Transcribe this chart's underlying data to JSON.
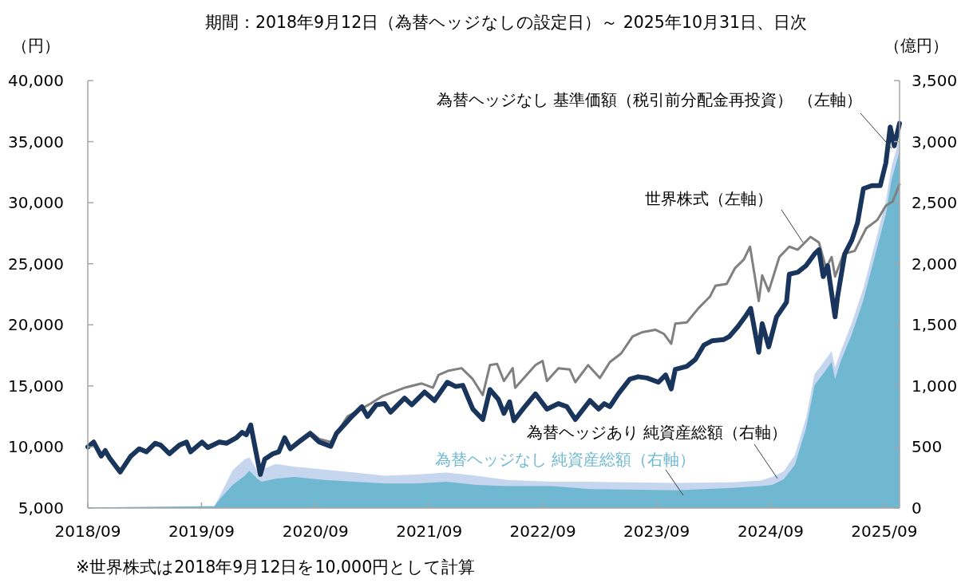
{
  "chart_data": {
    "type": "line",
    "title": "期間：2018年9月12日（為替ヘッジなしの設定日）～ 2025年10月31日、日次",
    "ylabel": "（円）",
    "y2label": "（億円）",
    "annotations": [
      "※世界株式は2018年9月12日を10,000円として計算"
    ],
    "xlim": [
      "2018-09-12",
      "2025-10-31"
    ],
    "xticks": [
      {
        "value": "2018-09-12",
        "label": "2018/09"
      },
      {
        "value": "2019-09-12",
        "label": "2019/09"
      },
      {
        "value": "2020-09-12",
        "label": "2020/09"
      },
      {
        "value": "2021-09-12",
        "label": "2021/09"
      },
      {
        "value": "2022-09-12",
        "label": "2022/09"
      },
      {
        "value": "2023-09-12",
        "label": "2023/09"
      },
      {
        "value": "2024-09-12",
        "label": "2024/09"
      },
      {
        "value": "2025-09-12",
        "label": "2025/09"
      }
    ],
    "ylim": [
      5000,
      40000
    ],
    "yticks": [
      {
        "value": 5000,
        "label": "5,000"
      },
      {
        "value": 10000,
        "label": "10,000"
      },
      {
        "value": 15000,
        "label": "15,000"
      },
      {
        "value": 20000,
        "label": "20,000"
      },
      {
        "value": 25000,
        "label": "25,000"
      },
      {
        "value": 30000,
        "label": "30,000"
      },
      {
        "value": 35000,
        "label": "35,000"
      },
      {
        "value": 40000,
        "label": "40,000"
      }
    ],
    "y2lim": [
      0,
      3500
    ],
    "y2ticks": [
      0,
      500,
      {
        "value": 1000,
        "label": "1,000"
      },
      {
        "value": 1500,
        "label": "1,500"
      },
      {
        "value": 2000,
        "label": "2,000"
      },
      {
        "value": 2500,
        "label": "2,500"
      },
      {
        "value": 3000,
        "label": "3,000"
      },
      {
        "value": 3500,
        "label": "3,500"
      }
    ],
    "stacked": true,
    "series": [
      {
        "name": "為替ヘッジなし 純資産総額（右軸）",
        "type": "area",
        "axis": "y2",
        "color": "#70b8d1",
        "x": [
          "2018-09-12",
          "2019-04-10",
          "2019-10-23",
          "2019-11-12",
          "2019-12-21",
          "2020-01-29",
          "2020-02-13",
          "2020-03-09",
          "2020-03-23",
          "2020-05-07",
          "2020-07-05",
          "2020-10-10",
          "2021-01-16",
          "2021-04-24",
          "2021-07-31",
          "2021-11-06",
          "2022-02-11",
          "2022-05-20",
          "2022-10-14",
          "2023-02-10",
          "2023-11-11",
          "2024-05-12",
          "2024-08-11",
          "2024-09-17",
          "2024-10-24",
          "2024-11-29",
          "2025-01-04",
          "2025-01-31",
          "2025-02-28",
          "2025-03-27",
          "2025-04-07",
          "2025-04-24",
          "2025-05-31",
          "2025-07-07",
          "2025-08-12",
          "2025-09-17",
          "2025-10-05",
          "2025-10-31"
        ],
        "values": [
          5,
          10,
          15,
          80,
          190,
          265,
          305,
          240,
          215,
          240,
          255,
          230,
          215,
          200,
          200,
          215,
          190,
          180,
          180,
          155,
          145,
          165,
          180,
          190,
          235,
          355,
          655,
          1005,
          1100,
          1195,
          1055,
          1195,
          1425,
          1705,
          2055,
          2405,
          2685,
          2920
        ]
      },
      {
        "name": "為替ヘッジあり 純資産総額（右軸）",
        "type": "area",
        "axis": "y2",
        "color": "#c6d6ef",
        "x": [
          "2018-09-12",
          "2019-04-10",
          "2019-10-23",
          "2019-11-12",
          "2019-12-21",
          "2020-01-29",
          "2020-02-13",
          "2020-03-09",
          "2020-03-23",
          "2020-05-07",
          "2020-07-05",
          "2020-10-10",
          "2021-01-16",
          "2021-04-24",
          "2021-07-31",
          "2021-11-06",
          "2022-02-11",
          "2022-05-20",
          "2022-10-14",
          "2023-02-10",
          "2023-11-11",
          "2024-05-12",
          "2024-08-11",
          "2024-09-17",
          "2024-10-24",
          "2024-11-29",
          "2025-01-04",
          "2025-01-31",
          "2025-02-28",
          "2025-03-27",
          "2025-04-07",
          "2025-04-24",
          "2025-05-31",
          "2025-07-07",
          "2025-08-12",
          "2025-09-17",
          "2025-10-05",
          "2025-10-31"
        ],
        "values": [
          0,
          0,
          0,
          30,
          120,
          135,
          110,
          65,
          100,
          120,
          85,
          85,
          75,
          65,
          75,
          75,
          75,
          50,
          35,
          60,
          60,
          45,
          45,
          65,
          65,
          80,
          85,
          90,
          90,
          90,
          95,
          80,
          95,
          95,
          100,
          110,
          110,
          110
        ]
      },
      {
        "name": "世界株式（左軸）",
        "axis": "y",
        "color": "#808080",
        "x": [
          "2018-09-12",
          "2018-10-01",
          "2018-10-25",
          "2018-11-07",
          "2018-11-21",
          "2018-12-25",
          "2019-01-28",
          "2019-02-24",
          "2019-03-19",
          "2019-04-16",
          "2019-05-04",
          "2019-06-01",
          "2019-07-03",
          "2019-07-26",
          "2019-08-08",
          "2019-09-14",
          "2019-10-02",
          "2019-11-08",
          "2019-12-01",
          "2020-01-02",
          "2020-01-20",
          "2020-02-03",
          "2020-02-17",
          "2020-03-19",
          "2020-04-02",
          "2020-04-29",
          "2020-05-17",
          "2020-06-05",
          "2020-06-23",
          "2020-07-20",
          "2020-08-26",
          "2020-09-24",
          "2020-10-31",
          "2020-12-24",
          "2021-03-08",
          "2021-04-14",
          "2021-06-25",
          "2021-08-19",
          "2021-09-24",
          "2021-10-12",
          "2021-11-14",
          "2021-12-25",
          "2022-01-30",
          "2022-03-03",
          "2022-03-26",
          "2022-04-18",
          "2022-05-10",
          "2022-06-07",
          "2022-06-15",
          "2022-07-13",
          "2022-08-19",
          "2022-09-11",
          "2022-09-25",
          "2022-11-01",
          "2022-12-07",
          "2022-12-25",
          "2023-02-04",
          "2023-03-14",
          "2023-04-15",
          "2023-05-21",
          "2023-06-27",
          "2023-07-29",
          "2023-09-08",
          "2023-10-06",
          "2023-10-29",
          "2023-11-11",
          "2023-12-18",
          "2024-01-24",
          "2024-03-01",
          "2024-03-19",
          "2024-04-24",
          "2024-05-21",
          "2024-06-18",
          "2024-07-08",
          "2024-08-05",
          "2024-08-16",
          "2024-09-06",
          "2024-10-10",
          "2024-11-11",
          "2024-12-08",
          "2025-01-18",
          "2025-02-14",
          "2025-03-09",
          "2025-03-27",
          "2025-04-07",
          "2025-05-04",
          "2025-06-09",
          "2025-07-16",
          "2025-08-21",
          "2025-09-17",
          "2025-10-09",
          "2025-10-31"
        ],
        "values": [
          10000,
          10450,
          9350,
          9800,
          9200,
          8050,
          9350,
          9950,
          9700,
          10400,
          10250,
          9550,
          10250,
          10500,
          9700,
          10500,
          10050,
          10500,
          10400,
          10850,
          11300,
          11100,
          11900,
          7850,
          9100,
          9550,
          9700,
          10850,
          9950,
          10550,
          11250,
          10650,
          10400,
          12500,
          13550,
          14150,
          14850,
          15200,
          14850,
          15900,
          16250,
          16450,
          15550,
          14250,
          16700,
          16800,
          15400,
          16450,
          14850,
          15650,
          16700,
          17050,
          15400,
          16450,
          16350,
          15300,
          16700,
          15650,
          16950,
          17650,
          19050,
          19400,
          19600,
          19250,
          18450,
          20100,
          20200,
          21350,
          22300,
          23200,
          23350,
          24650,
          25350,
          26400,
          21950,
          24050,
          22750,
          25550,
          26400,
          26150,
          27200,
          26750,
          24650,
          25550,
          23950,
          25800,
          26050,
          27900,
          28600,
          29750,
          30100,
          31500
        ]
      },
      {
        "name": "為替ヘッジなし 基準価額（税引前分配金再投資） （左軸）",
        "axis": "y",
        "color": "#19355c",
        "x": [
          "2018-09-12",
          "2018-10-01",
          "2018-10-25",
          "2018-11-07",
          "2018-11-21",
          "2018-12-25",
          "2019-01-28",
          "2019-02-24",
          "2019-03-19",
          "2019-04-16",
          "2019-05-04",
          "2019-06-01",
          "2019-07-03",
          "2019-07-26",
          "2019-08-08",
          "2019-09-14",
          "2019-10-02",
          "2019-11-08",
          "2019-12-01",
          "2020-01-02",
          "2020-01-20",
          "2020-02-03",
          "2020-02-17",
          "2020-03-19",
          "2020-04-02",
          "2020-04-29",
          "2020-05-17",
          "2020-06-05",
          "2020-06-23",
          "2020-07-20",
          "2020-08-26",
          "2020-09-24",
          "2020-10-31",
          "2020-11-18",
          "2021-01-03",
          "2021-02-08",
          "2021-02-26",
          "2021-03-26",
          "2021-04-22",
          "2021-05-11",
          "2021-06-07",
          "2021-06-25",
          "2021-07-18",
          "2021-08-28",
          "2021-09-29",
          "2021-11-09",
          "2021-12-06",
          "2021-12-29",
          "2022-01-30",
          "2022-03-03",
          "2022-03-26",
          "2022-04-22",
          "2022-05-10",
          "2022-05-28",
          "2022-06-11",
          "2022-07-13",
          "2022-08-19",
          "2022-09-25",
          "2022-11-01",
          "2022-11-28",
          "2022-12-25",
          "2023-02-10",
          "2023-03-10",
          "2023-03-28",
          "2023-04-15",
          "2023-05-12",
          "2023-06-18",
          "2023-07-15",
          "2023-08-12",
          "2023-09-18",
          "2023-10-11",
          "2023-10-29",
          "2023-11-11",
          "2023-12-18",
          "2024-01-14",
          "2024-02-11",
          "2024-03-09",
          "2024-04-15",
          "2024-05-03",
          "2024-05-30",
          "2024-06-22",
          "2024-07-10",
          "2024-08-05",
          "2024-08-16",
          "2024-09-06",
          "2024-10-01",
          "2024-11-02",
          "2024-11-11",
          "2024-12-08",
          "2025-01-04",
          "2025-01-31",
          "2025-02-14",
          "2025-02-28",
          "2025-03-14",
          "2025-04-07",
          "2025-04-15",
          "2025-05-08",
          "2025-05-31",
          "2025-06-18",
          "2025-07-07",
          "2025-08-03",
          "2025-08-30",
          "2025-09-17",
          "2025-10-01",
          "2025-10-14",
          "2025-10-31"
        ],
        "values": [
          10000,
          10400,
          9250,
          9700,
          9100,
          7950,
          9250,
          9850,
          9600,
          10300,
          10150,
          9450,
          10150,
          10400,
          9600,
          10400,
          9950,
          10400,
          10300,
          10750,
          11200,
          11000,
          11800,
          7750,
          9000,
          9450,
          9600,
          10750,
          9850,
          10400,
          11100,
          10400,
          10050,
          11100,
          12400,
          13300,
          12500,
          13450,
          13550,
          12850,
          13550,
          14000,
          13450,
          14500,
          13800,
          15300,
          14950,
          15050,
          13100,
          12250,
          14700,
          13900,
          12750,
          13700,
          12150,
          13200,
          14350,
          13100,
          13550,
          13300,
          12250,
          13800,
          13100,
          13550,
          13300,
          14350,
          15550,
          15750,
          15650,
          15300,
          15900,
          14750,
          16350,
          16600,
          17150,
          18350,
          18700,
          18800,
          19050,
          19850,
          20650,
          21350,
          17750,
          20100,
          18200,
          20650,
          21850,
          24150,
          24300,
          24850,
          25800,
          26150,
          23950,
          24850,
          20650,
          22300,
          25800,
          26950,
          28350,
          31150,
          31400,
          31400,
          33250,
          36200,
          34650,
          36500
        ]
      }
    ]
  }
}
